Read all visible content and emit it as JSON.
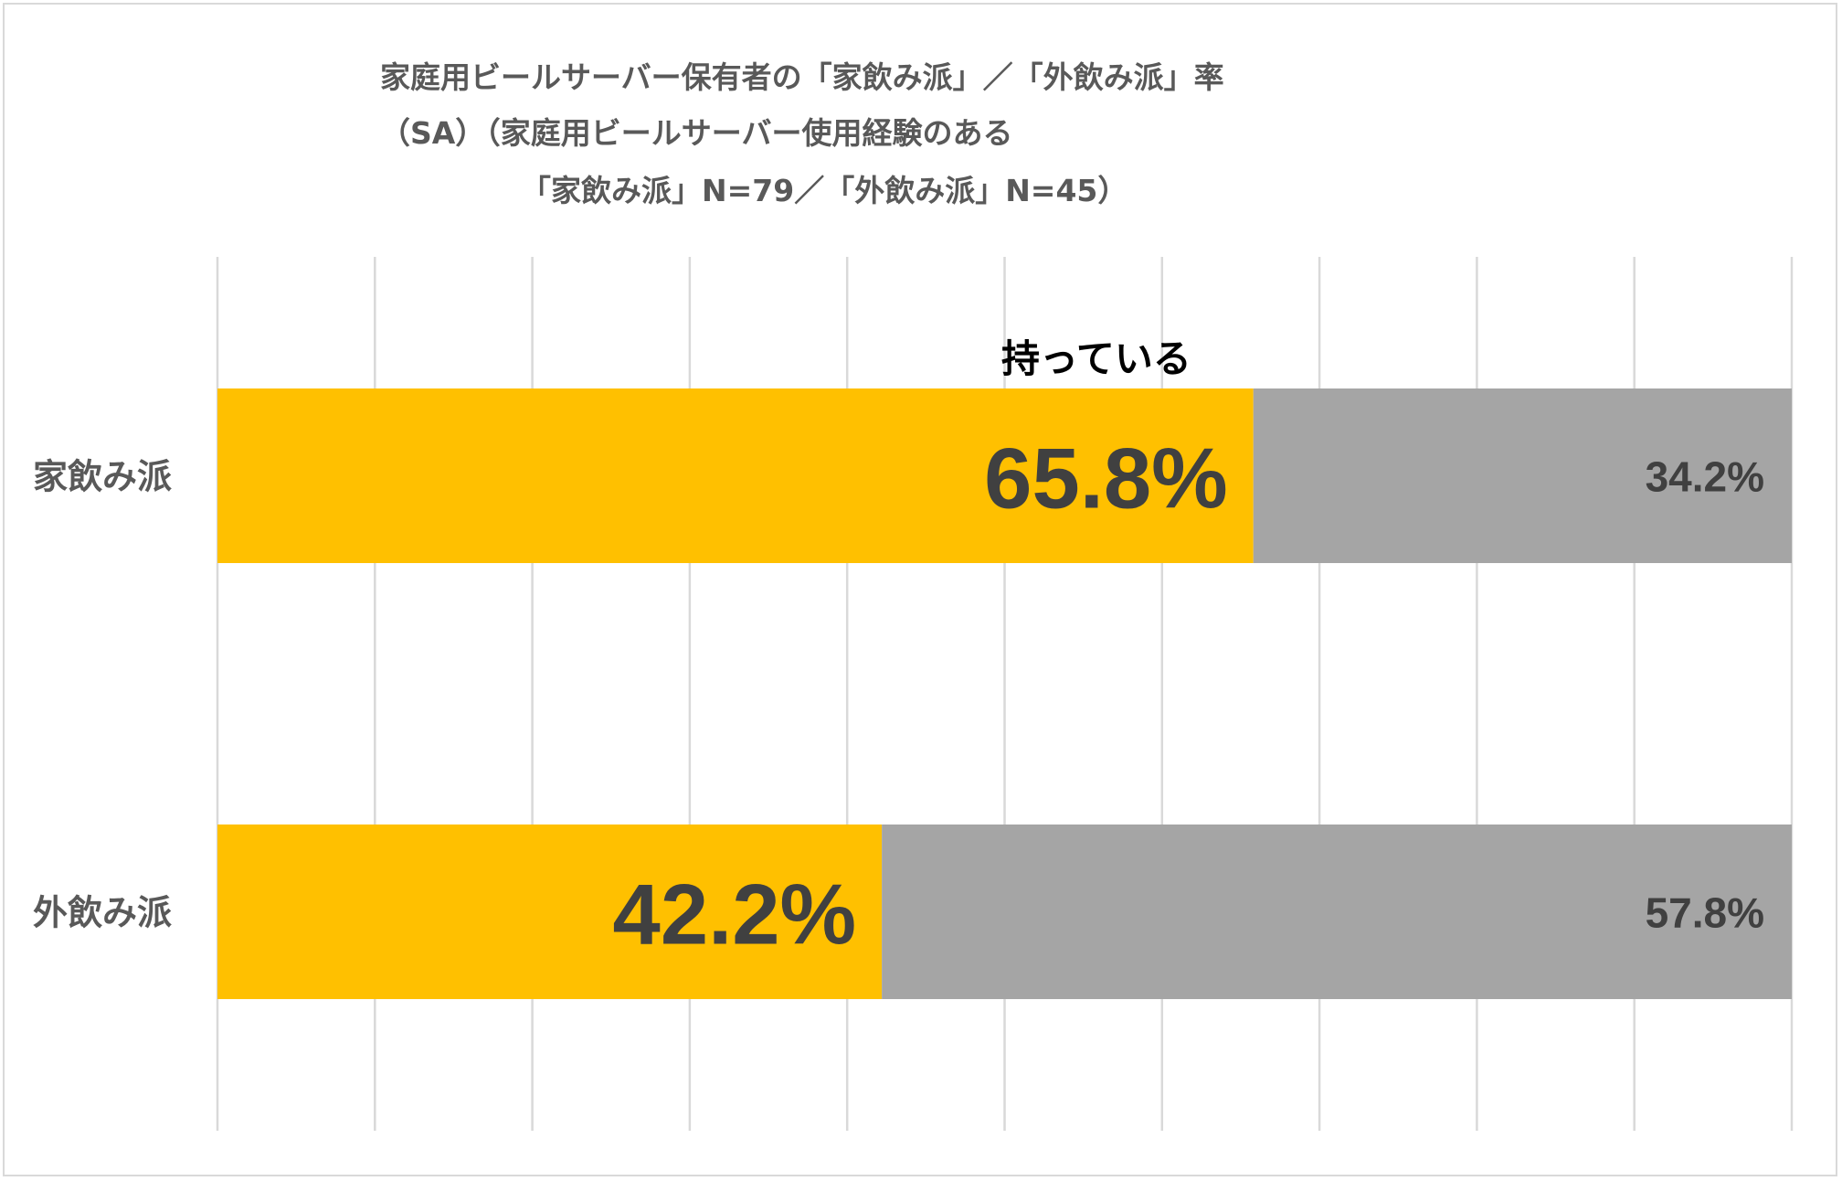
{
  "chart_data": {
    "type": "bar",
    "orientation": "horizontal",
    "stacked": "100%",
    "title_lines": [
      "家庭用ビールサーバー保有者の「家飲み派」／「外飲み派」率",
      "（SA）（家庭用ビールサーバー使用経験のある",
      "「家飲み派」N=79／「外飲み派」N=45）"
    ],
    "categories": [
      "家飲み派",
      "外飲み派"
    ],
    "series": [
      {
        "name": "持っている",
        "values": [
          65.8,
          42.2
        ],
        "labels": [
          "65.8%",
          "42.2%"
        ],
        "color": "#FFC000"
      },
      {
        "values": [
          34.2,
          57.8
        ],
        "labels": [
          "34.2%",
          "57.8%"
        ],
        "color": "#A5A5A5"
      }
    ],
    "xlim": [
      0,
      100
    ],
    "grid": true,
    "gridline_step": 10,
    "label_color": "#404040",
    "grid_color": "#D9D9D9"
  }
}
